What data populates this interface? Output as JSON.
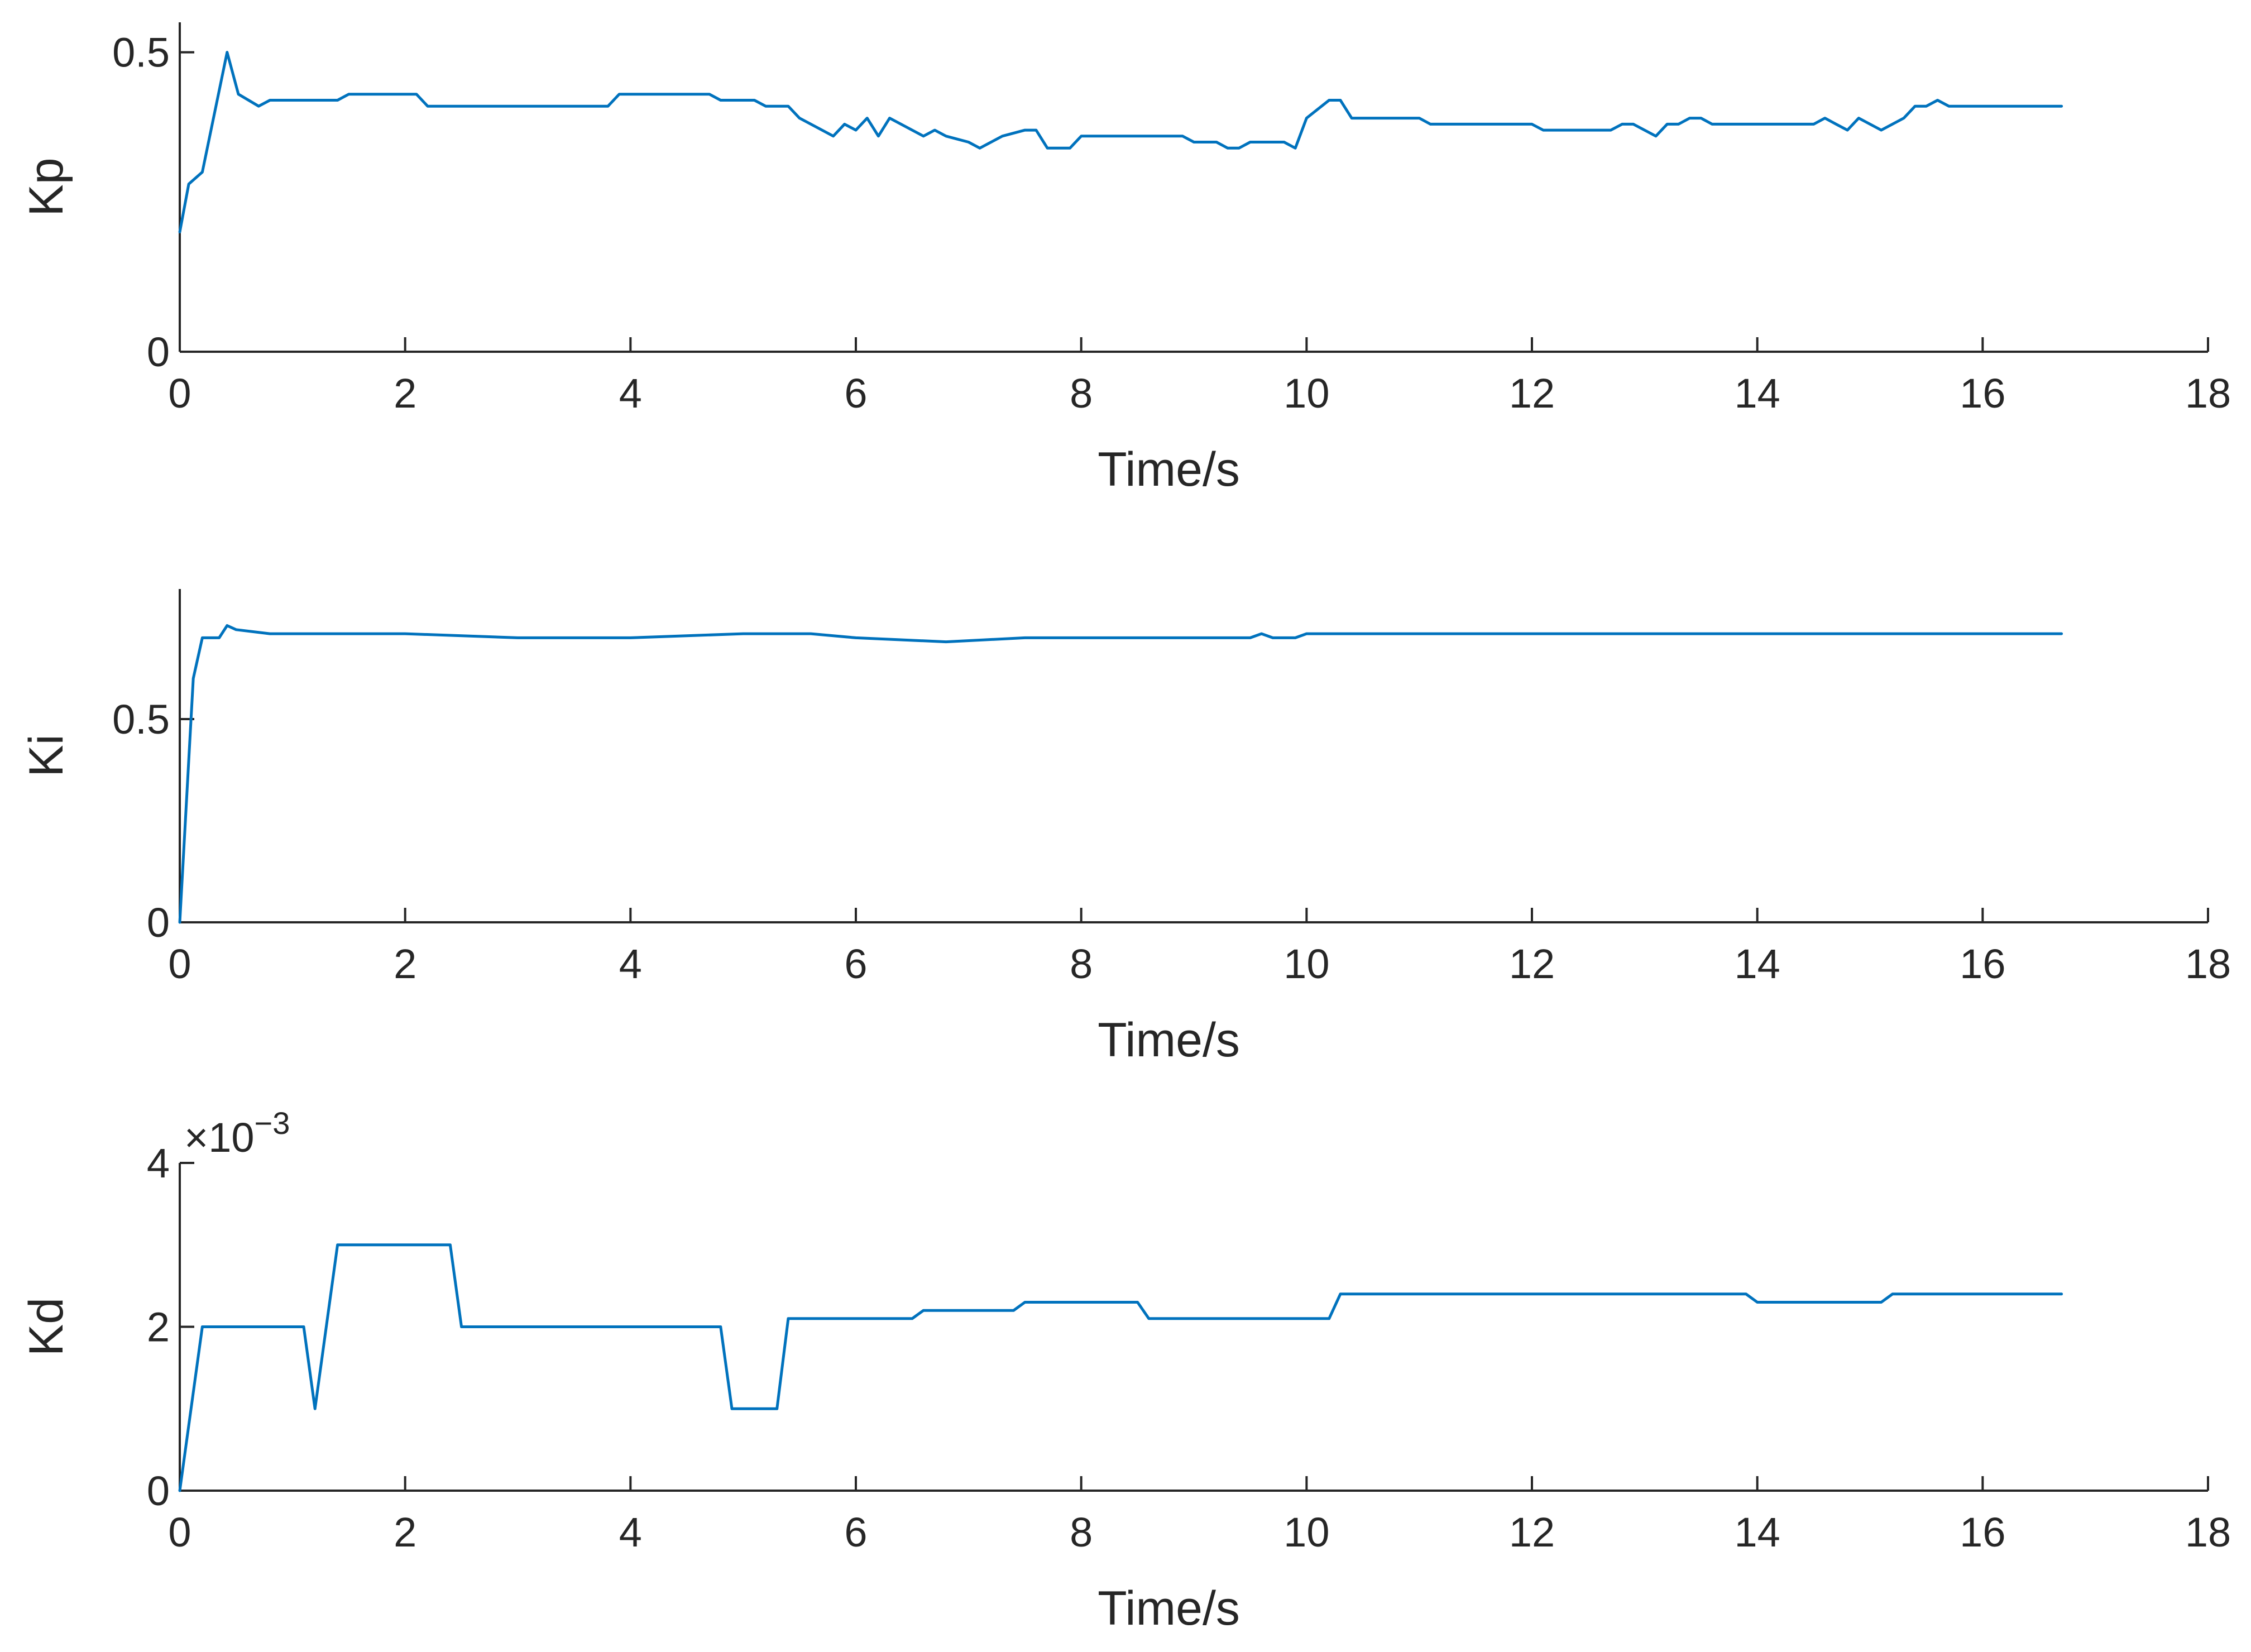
{
  "chart_data": [
    {
      "type": "line",
      "title": "",
      "xlabel": "Time/s",
      "ylabel": "Kp",
      "xlim": [
        0,
        18
      ],
      "ylim": [
        0,
        0.55
      ],
      "xticks": [
        0,
        2,
        4,
        6,
        8,
        10,
        12,
        14,
        16,
        18
      ],
      "xtick_labels": [
        "0",
        "2",
        "4",
        "6",
        "8",
        "10",
        "12",
        "14",
        "16",
        "18"
      ],
      "yticks": [
        0,
        0.5
      ],
      "ytick_labels": [
        "0",
        "0.5"
      ],
      "exponent_label": "",
      "grid": false,
      "series": [
        {
          "color": "#0072BD",
          "x": [
            0,
            0.08,
            0.2,
            0.42,
            0.52,
            0.7,
            0.8,
            1.4,
            1.5,
            2.1,
            2.2,
            3.8,
            3.9,
            4.7,
            4.8,
            5.1,
            5.2,
            5.4,
            5.5,
            5.7,
            5.8,
            5.9,
            6.0,
            6.1,
            6.2,
            6.3,
            6.5,
            6.6,
            6.7,
            6.8,
            7.0,
            7.1,
            7.3,
            7.5,
            7.6,
            7.7,
            7.9,
            8.0,
            8.9,
            9.0,
            9.2,
            9.3,
            9.4,
            9.5,
            9.8,
            9.9,
            10.0,
            10.2,
            10.3,
            10.4,
            11.0,
            11.1,
            12.0,
            12.1,
            12.7,
            12.8,
            12.9,
            13.1,
            13.2,
            13.3,
            13.4,
            13.5,
            13.6,
            14.5,
            14.6,
            14.7,
            14.8,
            14.9,
            15.1,
            15.3,
            15.4,
            15.5,
            15.6,
            15.7,
            16.7
          ],
          "y": [
            0.2,
            0.28,
            0.3,
            0.5,
            0.43,
            0.41,
            0.42,
            0.42,
            0.43,
            0.43,
            0.41,
            0.41,
            0.43,
            0.43,
            0.42,
            0.42,
            0.41,
            0.41,
            0.39,
            0.37,
            0.36,
            0.38,
            0.37,
            0.39,
            0.36,
            0.39,
            0.37,
            0.36,
            0.37,
            0.36,
            0.35,
            0.34,
            0.36,
            0.37,
            0.37,
            0.34,
            0.34,
            0.36,
            0.36,
            0.35,
            0.35,
            0.34,
            0.34,
            0.35,
            0.35,
            0.34,
            0.39,
            0.42,
            0.42,
            0.39,
            0.39,
            0.38,
            0.38,
            0.37,
            0.37,
            0.38,
            0.38,
            0.36,
            0.38,
            0.38,
            0.39,
            0.39,
            0.38,
            0.38,
            0.39,
            0.38,
            0.37,
            0.39,
            0.37,
            0.39,
            0.41,
            0.41,
            0.42,
            0.41,
            0.41
          ]
        }
      ]
    },
    {
      "type": "line",
      "title": "",
      "xlabel": "Time/s",
      "ylabel": "Ki",
      "xlim": [
        0,
        18
      ],
      "ylim": [
        0,
        0.82
      ],
      "xticks": [
        0,
        2,
        4,
        6,
        8,
        10,
        12,
        14,
        16,
        18
      ],
      "xtick_labels": [
        "0",
        "2",
        "4",
        "6",
        "8",
        "10",
        "12",
        "14",
        "16",
        "18"
      ],
      "yticks": [
        0,
        0.5
      ],
      "ytick_labels": [
        "0",
        "0.5"
      ],
      "exponent_label": "",
      "grid": false,
      "series": [
        {
          "color": "#0072BD",
          "x": [
            0,
            0.12,
            0.2,
            0.35,
            0.42,
            0.5,
            0.8,
            2.0,
            3.0,
            4.0,
            5.0,
            5.6,
            6.0,
            6.8,
            7.5,
            9.5,
            9.6,
            9.7,
            9.9,
            10.0,
            11.0,
            12.0,
            14.0,
            16.7
          ],
          "y": [
            0,
            0.6,
            0.7,
            0.7,
            0.73,
            0.72,
            0.71,
            0.71,
            0.7,
            0.7,
            0.71,
            0.71,
            0.7,
            0.69,
            0.7,
            0.7,
            0.71,
            0.7,
            0.7,
            0.71,
            0.71,
            0.71,
            0.71,
            0.71
          ]
        }
      ]
    },
    {
      "type": "line",
      "title": "",
      "xlabel": "Time/s",
      "ylabel": "Kd",
      "xlim": [
        0,
        18
      ],
      "ylim": [
        0,
        4
      ],
      "xticks": [
        0,
        2,
        4,
        6,
        8,
        10,
        12,
        14,
        16,
        18
      ],
      "xtick_labels": [
        "0",
        "2",
        "4",
        "6",
        "8",
        "10",
        "12",
        "14",
        "16",
        "18"
      ],
      "yticks": [
        0,
        2,
        4
      ],
      "ytick_labels": [
        "0",
        "2",
        "4"
      ],
      "exponent_label": "×10",
      "exponent_sup": "−3",
      "grid": false,
      "series": [
        {
          "color": "#0072BD",
          "x": [
            0,
            0.2,
            1.1,
            1.2,
            1.4,
            2.4,
            2.5,
            4.8,
            4.9,
            5.3,
            5.4,
            6.5,
            6.6,
            7.4,
            7.5,
            8.5,
            8.6,
            10.2,
            10.3,
            13.9,
            14.0,
            15.1,
            15.2,
            16.7
          ],
          "y": [
            0,
            2.0,
            2.0,
            1.0,
            3.0,
            3.0,
            2.0,
            2.0,
            1.0,
            1.0,
            2.1,
            2.1,
            2.2,
            2.2,
            2.3,
            2.3,
            2.1,
            2.1,
            2.4,
            2.4,
            2.3,
            2.3,
            2.4,
            2.4
          ]
        }
      ]
    }
  ]
}
